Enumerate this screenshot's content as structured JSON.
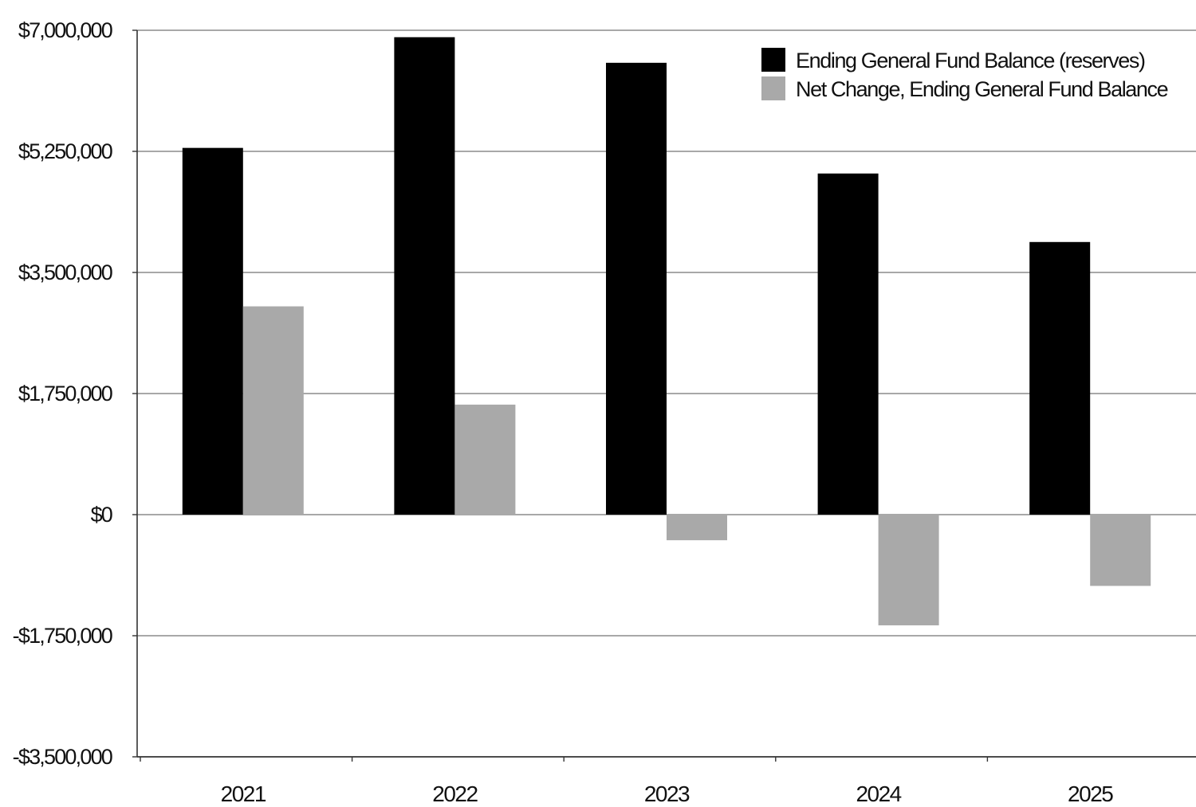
{
  "chart_data": {
    "type": "bar",
    "title": "",
    "xlabel": "",
    "ylabel": "",
    "categories": [
      "2021",
      "2022",
      "2023",
      "2024",
      "2025"
    ],
    "series": [
      {
        "name": "Ending General Fund Balance (reserves)",
        "color": "#000000",
        "values": [
          5300000,
          6900000,
          6530000,
          4930000,
          3940000
        ]
      },
      {
        "name": "Net Change, Ending General Fund Balance",
        "color": "#a9a9a9",
        "values": [
          3010000,
          1590000,
          -370000,
          -1600000,
          -1030000
        ]
      }
    ],
    "ylim": [
      -3500000,
      7000000
    ],
    "yticks": [
      7000000,
      5250000,
      3500000,
      1750000,
      0,
      -1750000,
      -3500000
    ],
    "ytick_labels": [
      "$7,000,000",
      "$5,250,000",
      "$3,500,000",
      "$1,750,000",
      "$0",
      "-$1,750,000",
      "-$3,500,000"
    ],
    "grid": true,
    "legend_position": "top-right"
  }
}
